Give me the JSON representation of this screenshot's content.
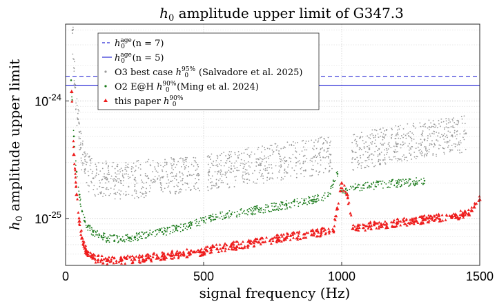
{
  "chart_data": {
    "type": "scatter",
    "title": "h0 amplitude upper limit of G347.3",
    "xlabel": "signal frequency (Hz)",
    "ylabel": "h0 amplitude upper limit",
    "xlim": [
      0,
      1500
    ],
    "ylim": [
      4e-26,
      4.5e-24
    ],
    "yscale": "log",
    "xticks": [
      0,
      500,
      1000,
      1500
    ],
    "xtick_labels": [
      "0",
      "500",
      "1000",
      "1500"
    ],
    "yticks": [
      1e-25,
      1e-24
    ],
    "ytick_labels": [
      {
        "base": "10",
        "exp": "-25"
      },
      {
        "base": "10",
        "exp": "-24"
      }
    ],
    "grid": true,
    "legend_position": "top-left",
    "series": [
      {
        "name": "h0age(n = 7)",
        "legend": {
          "sym": "h",
          "sub": "0",
          "sup": "age",
          "rest": "(n = 7)"
        },
        "kind": "hline",
        "style": "dashed",
        "color": "#2b2bd6",
        "y": 1.62e-24
      },
      {
        "name": "h0age(n = 5)",
        "legend": {
          "sym": "h",
          "sub": "0",
          "sup": "age",
          "rest": "(n = 5)"
        },
        "kind": "hline",
        "style": "solid",
        "color": "#2b2bd6",
        "y": 1.35e-24
      },
      {
        "name": "O3 best case h0 95% (Salvadore et al. 2025)",
        "legend": {
          "pre": "O3 best case ",
          "sym": "h",
          "sub": "0",
          "sup": "95%",
          "rest": " (Salvadore et al. 2025)"
        },
        "kind": "scatter",
        "marker": "dot",
        "color": "#9a9a9a",
        "x": [
          25,
          35,
          45,
          55,
          70,
          100,
          150,
          200,
          250,
          300,
          350,
          400,
          450,
          480,
          520,
          600,
          700,
          800,
          900,
          960,
          1040,
          1100,
          1200,
          1300,
          1400,
          1450
        ],
        "y": [
          4e-24,
          1.3e-24,
          7e-25,
          4e-25,
          2.6e-25,
          2.2e-25,
          2.15e-25,
          2.1e-25,
          2.15e-25,
          2.2e-25,
          2.25e-25,
          2.3e-25,
          2.35e-25,
          2.4e-25,
          2.5e-25,
          2.65e-25,
          2.85e-25,
          3.1e-25,
          3.35e-25,
          3.5e-25,
          3.7e-25,
          3.9e-25,
          4.3e-25,
          4.7e-25,
          5.1e-25,
          5.3e-25
        ]
      },
      {
        "name": "O2 E@H h0 90% (Ming et al. 2024)",
        "legend": {
          "pre": "O2 E@H ",
          "sym": "h",
          "sub": "0",
          "sup": "90%",
          "rest": "(Ming et al. 2024)"
        },
        "kind": "scatter",
        "marker": "dot",
        "color": "#1a7a1a",
        "x": [
          20,
          30,
          40,
          50,
          60,
          70,
          80,
          100,
          130,
          150,
          200,
          250,
          300,
          350,
          400,
          450,
          500,
          520,
          600,
          700,
          800,
          900,
          950,
          985,
          1000,
          1050,
          1100,
          1200,
          1300
        ],
        "y": [
          1.5e-24,
          5e-25,
          2.5e-25,
          1.6e-25,
          1.15e-25,
          9.5e-26,
          8.5e-26,
          7.7e-26,
          7.1e-26,
          6.8e-26,
          6.7e-26,
          6.9e-26,
          7.3e-26,
          7.7e-26,
          8.2e-26,
          8.8e-26,
          9.6e-26,
          1.01e-25,
          1.09e-25,
          1.19e-25,
          1.31e-25,
          1.45e-25,
          1.55e-25,
          2.4e-25,
          1.7e-25,
          1.82e-25,
          1.9e-25,
          2e-25,
          2.1e-25
        ]
      },
      {
        "name": "this paper h0 90%",
        "legend": {
          "pre": "this paper ",
          "sym": "h",
          "sub": "0",
          "sup": "90%",
          "rest": ""
        },
        "kind": "scatter",
        "marker": "triangle",
        "color": "#ee1c1c",
        "x": [
          22,
          30,
          40,
          50,
          60,
          70,
          80,
          100,
          130,
          150,
          200,
          250,
          300,
          350,
          400,
          450,
          490,
          510,
          600,
          700,
          800,
          900,
          970,
          1000,
          1020,
          1040,
          1100,
          1200,
          1300,
          1400,
          1460,
          1480,
          1500
        ],
        "y": [
          1.2e-24,
          3.5e-25,
          1.6e-25,
          9.5e-26,
          6.8e-26,
          5.6e-26,
          5e-26,
          4.6e-26,
          4.45e-26,
          4.4e-26,
          4.4e-26,
          4.5e-26,
          4.65e-26,
          4.8e-26,
          4.95e-26,
          5.1e-26,
          5.2e-26,
          5.4e-26,
          5.8e-26,
          6.3e-26,
          6.9e-26,
          7.5e-26,
          7.9e-26,
          2e-25,
          1.6e-25,
          8.2e-26,
          8.6e-26,
          9.2e-26,
          9.8e-26,
          1.05e-25,
          1.1e-25,
          1.25e-25,
          1.45e-25
        ]
      }
    ]
  }
}
